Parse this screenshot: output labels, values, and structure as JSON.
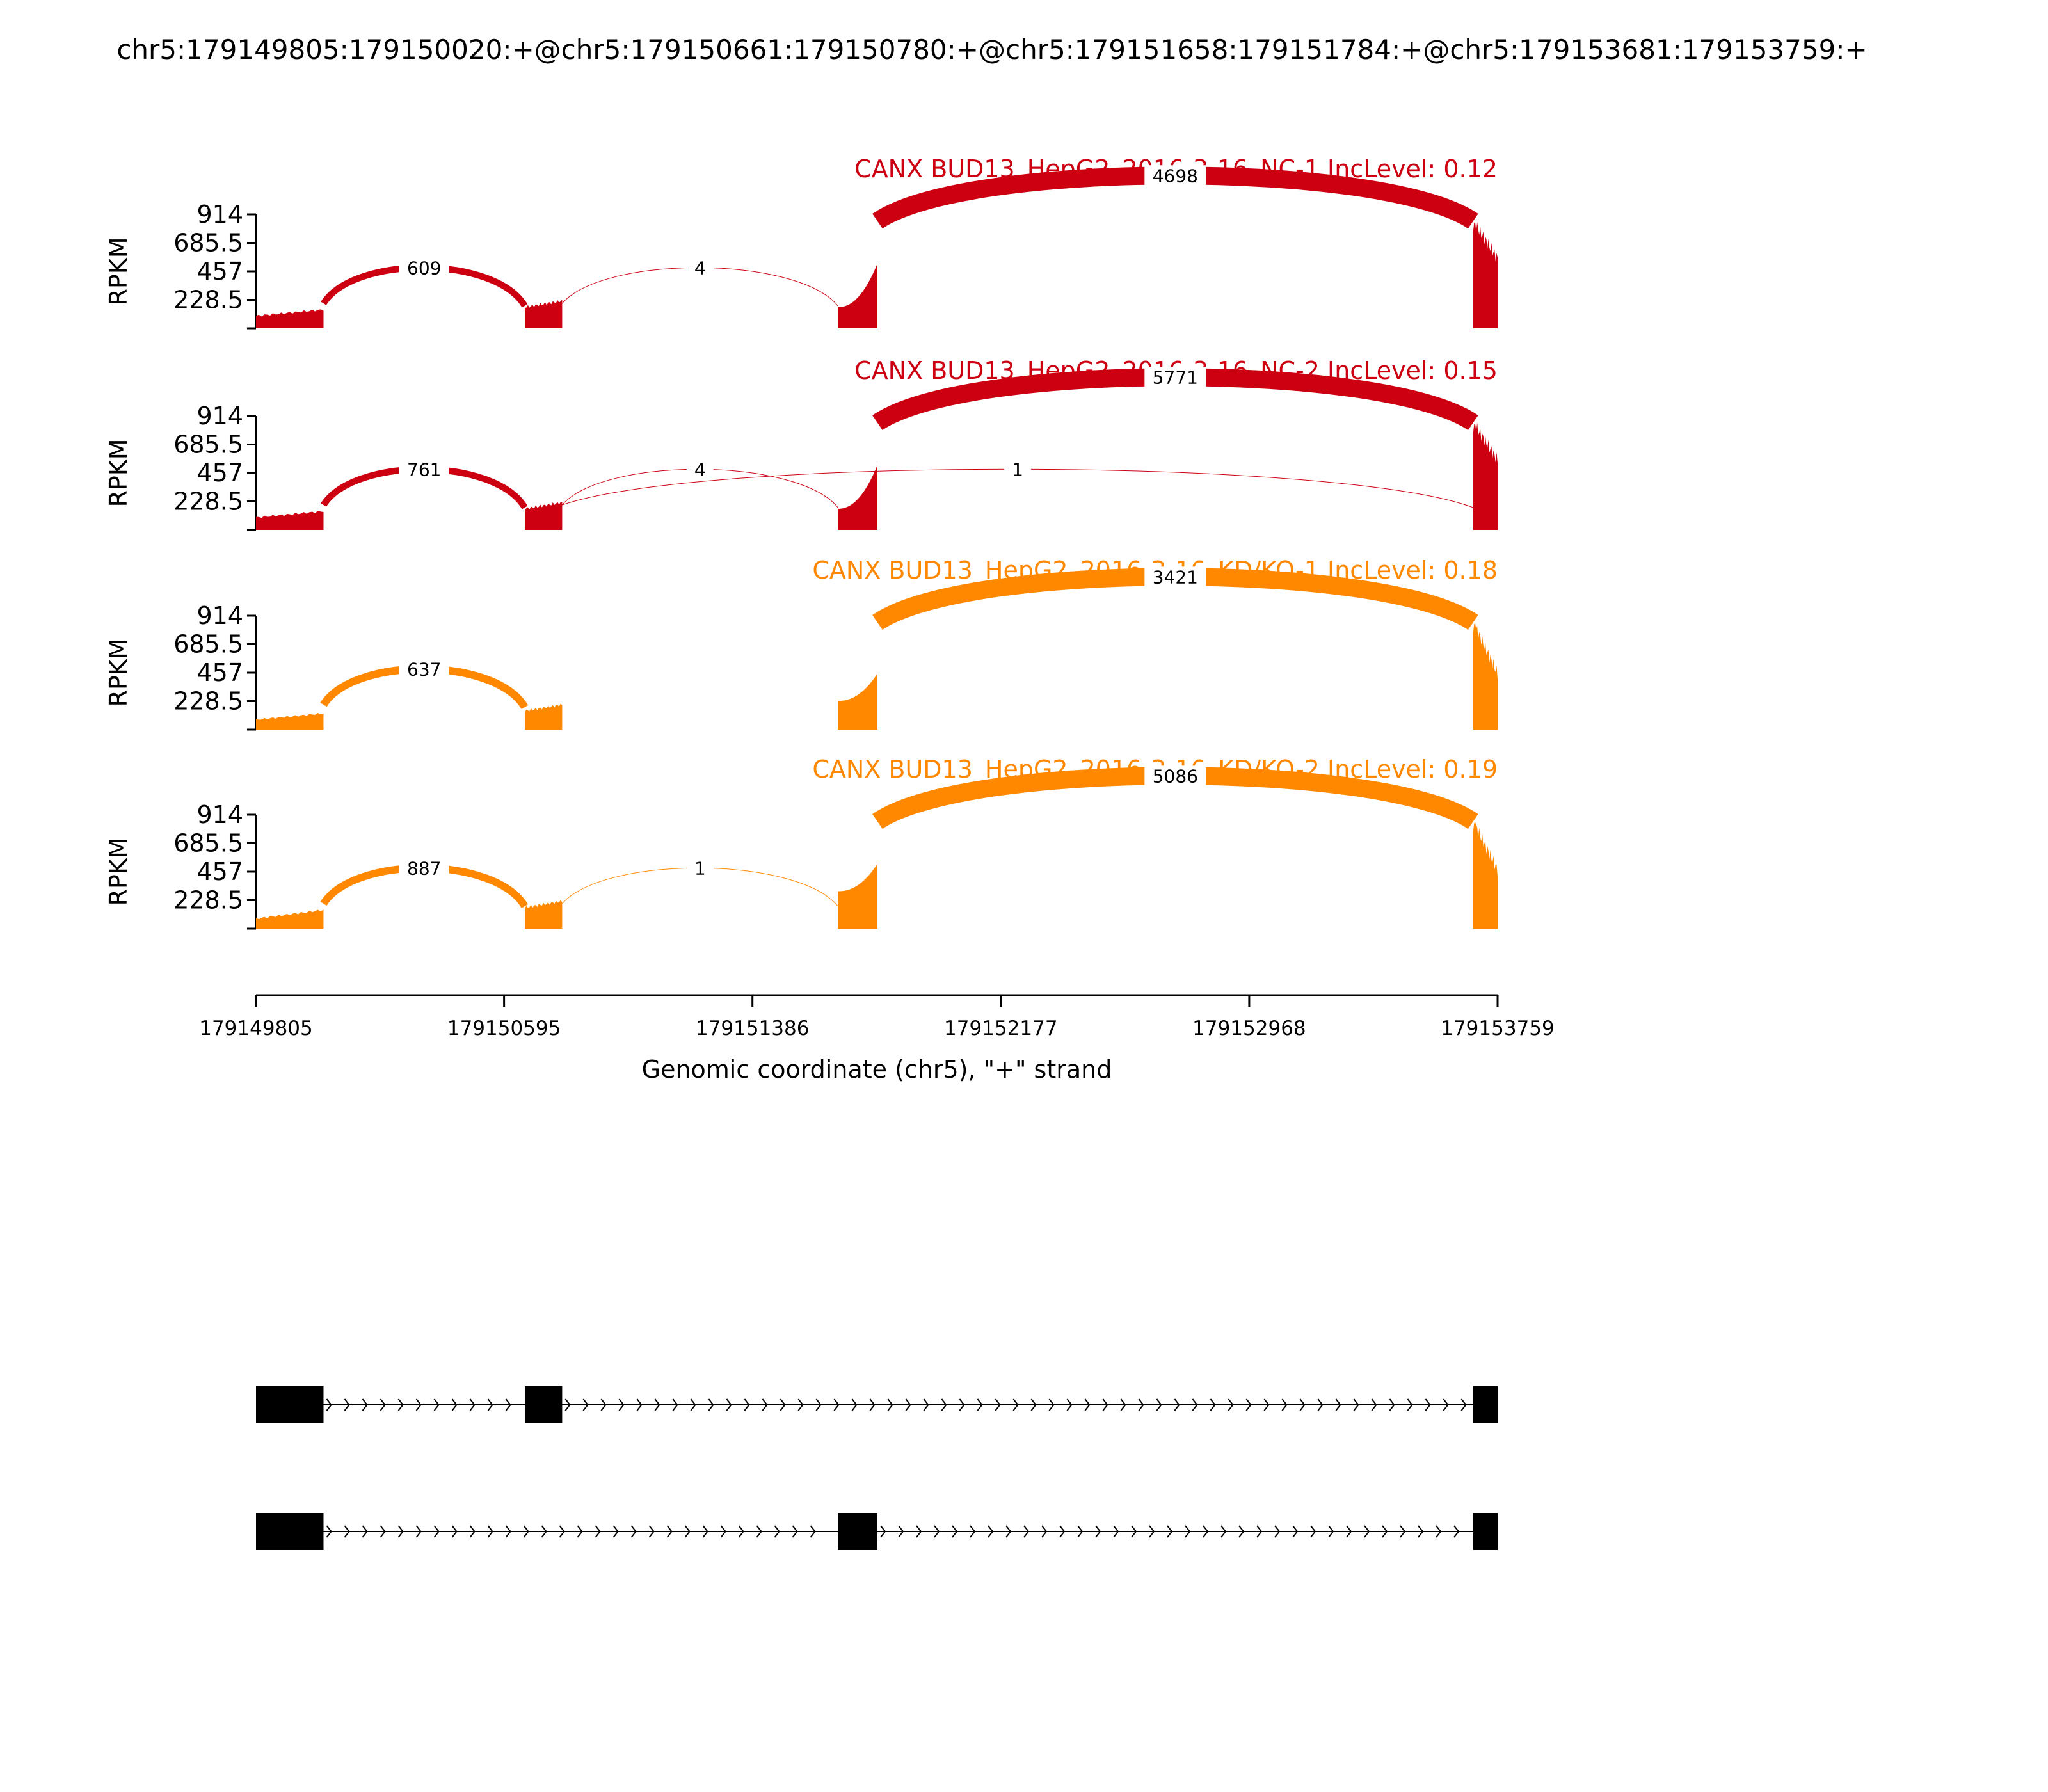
{
  "chart_data": {
    "type": "sashimi",
    "title": "chr5:179149805:179150020:+@chr5:179150661:179150780:+@chr5:179151658:179151784:+@chr5:179153681:179153759:+",
    "ylabel": "RPKM",
    "xlabel": "Genomic coordinate (chr5), \"+\" strand",
    "xlim": [
      179149805,
      179153759
    ],
    "x_ticks": [
      "179149805",
      "179150595",
      "179151386",
      "179152177",
      "179152968",
      "179153759"
    ],
    "y_max": 914,
    "y_ticks": [
      "914",
      "685.5",
      "457",
      "228.5"
    ],
    "exons": [
      [
        179149805,
        179150020
      ],
      [
        179150661,
        179150780
      ],
      [
        179151658,
        179151784
      ],
      [
        179153681,
        179153759
      ]
    ],
    "isoforms": [
      [
        [
          179149805,
          179150020
        ],
        [
          179150661,
          179150780
        ],
        [
          179153681,
          179153759
        ]
      ],
      [
        [
          179149805,
          179150020
        ],
        [
          179151658,
          179151784
        ],
        [
          179153681,
          179153759
        ]
      ]
    ],
    "samples": [
      {
        "name": "CANX BUD13_HepG2_2016-3-16_NC-1 IncLevel: 0.12",
        "color": "#cc0011",
        "exon_levels": [
          [
            100,
            150
          ],
          [
            170,
            220
          ],
          [
            170,
            520
          ],
          [
            860,
            560
          ]
        ],
        "junctions": [
          {
            "start": 179150020,
            "end": 179150661,
            "count": "609",
            "above": true
          },
          {
            "start": 179150780,
            "end": 179151658,
            "count": "4",
            "above": true
          },
          {
            "start": 179151784,
            "end": 179153681,
            "count": "4698",
            "above": true
          }
        ]
      },
      {
        "name": "CANX BUD13_HepG2_2016-3-16_NC-2 IncLevel: 0.15",
        "color": "#cc0011",
        "exon_levels": [
          [
            100,
            150
          ],
          [
            170,
            220
          ],
          [
            170,
            520
          ],
          [
            860,
            560
          ]
        ],
        "junctions": [
          {
            "start": 179150020,
            "end": 179150661,
            "count": "761",
            "above": true
          },
          {
            "start": 179150780,
            "end": 179151658,
            "count": "4",
            "above": true
          },
          {
            "start": 179151784,
            "end": 179153681,
            "count": "5771",
            "above": true
          },
          {
            "start": 179150780,
            "end": 179153681,
            "count": "1",
            "above": true
          }
        ]
      },
      {
        "name": "CANX BUD13_HepG2_2016-3-16_KD/KO-1 IncLevel: 0.18",
        "color": "#ff8800",
        "exon_levels": [
          [
            80,
            130
          ],
          [
            150,
            200
          ],
          [
            230,
            450
          ],
          [
            860,
            450
          ]
        ],
        "junctions": [
          {
            "start": 179150020,
            "end": 179150661,
            "count": "637",
            "above": true
          },
          {
            "start": 179151784,
            "end": 179153681,
            "count": "3421",
            "above": true
          }
        ]
      },
      {
        "name": "CANX BUD13_HepG2_2016-3-16_KD/KO-2 IncLevel: 0.19",
        "color": "#ff8800",
        "exon_levels": [
          [
            80,
            150
          ],
          [
            170,
            220
          ],
          [
            300,
            520
          ],
          [
            860,
            470
          ]
        ],
        "junctions": [
          {
            "start": 179150020,
            "end": 179150661,
            "count": "887",
            "above": true
          },
          {
            "start": 179150780,
            "end": 179151658,
            "count": "1",
            "above": true
          },
          {
            "start": 179151784,
            "end": 179153681,
            "count": "5086",
            "above": true
          }
        ]
      }
    ]
  }
}
